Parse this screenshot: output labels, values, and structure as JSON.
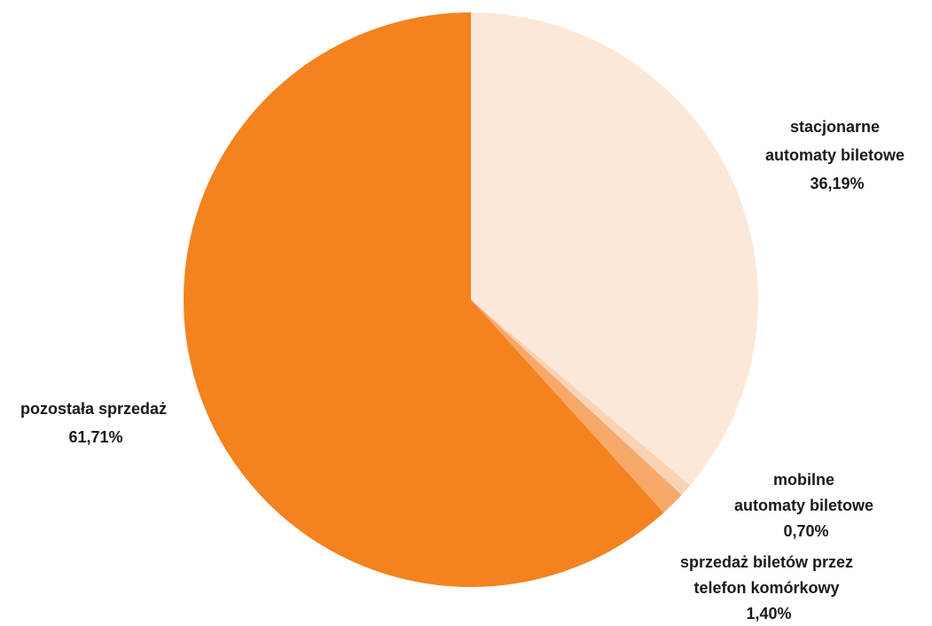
{
  "chart_data": {
    "type": "pie",
    "start_angle_deg": 0,
    "direction": "clockwise",
    "slices": [
      {
        "name": "stacjonarne automaty biletowe",
        "label_lines": [
          "stacjonarne",
          "automaty biletowe",
          "36,19%"
        ],
        "value": 36.19,
        "color": "#fce8d9"
      },
      {
        "name": "mobilne automaty biletowe",
        "label_lines": [
          "mobilne",
          "automaty biletowe",
          "0,70%"
        ],
        "value": 0.7,
        "color": "#f9d3b4"
      },
      {
        "name": "sprzedaż biletów przez telefon komórkowy",
        "label_lines": [
          "sprzedaż biletów przez",
          "telefon komórkowy",
          "1,40%"
        ],
        "value": 1.4,
        "color": "#f7a96a"
      },
      {
        "name": "pozostała sprzedaż",
        "label_lines": [
          "pozostała sprzedaż",
          "61,71%"
        ],
        "value": 61.71,
        "color": "#f4821f"
      }
    ]
  }
}
